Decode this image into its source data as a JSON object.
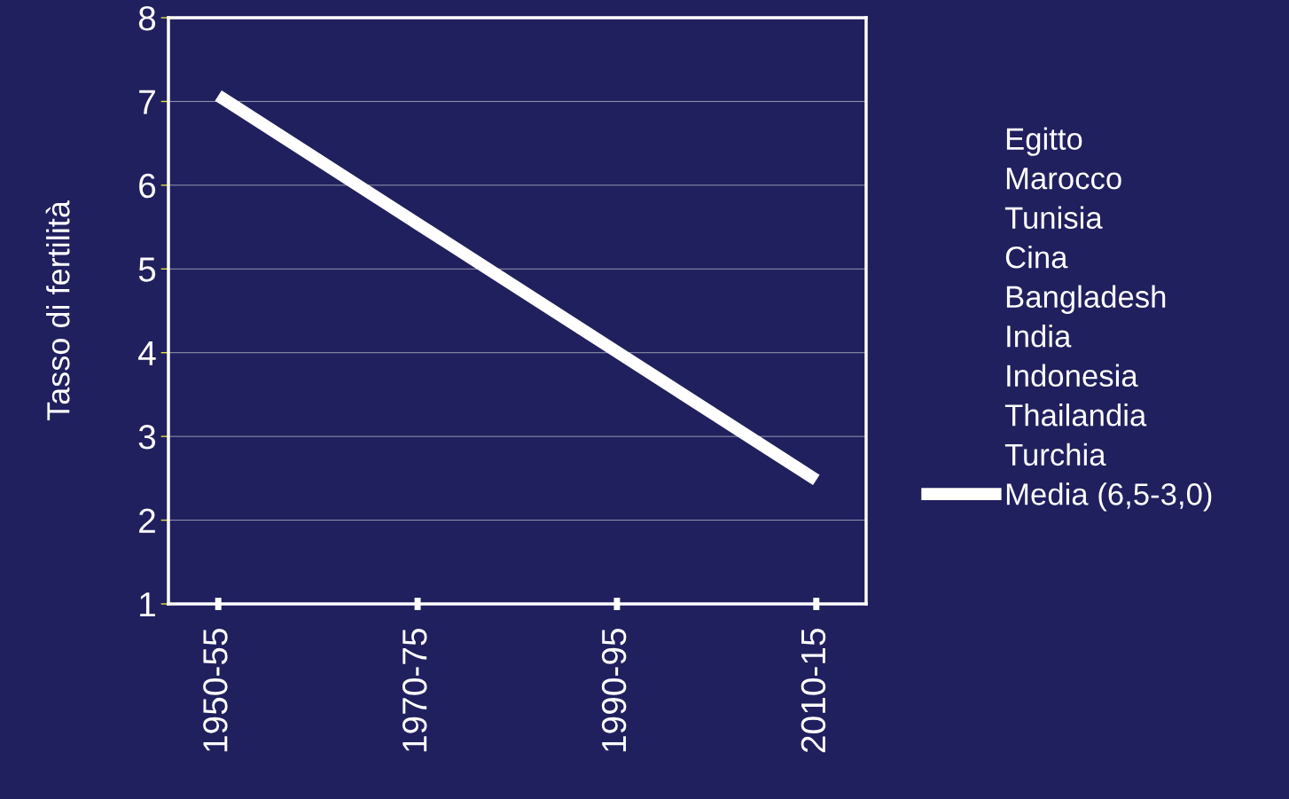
{
  "chart_data": {
    "type": "line",
    "ylabel": "Tasso di fertilità",
    "categories": [
      "1950-55",
      "1970-75",
      "1990-95",
      "2010-15"
    ],
    "series": [
      {
        "name": "Egitto",
        "values": [
          null,
          null,
          null,
          null
        ]
      },
      {
        "name": "Marocco",
        "values": [
          null,
          null,
          null,
          null
        ]
      },
      {
        "name": "Tunisia",
        "values": [
          null,
          null,
          null,
          null
        ]
      },
      {
        "name": "Cina",
        "values": [
          null,
          null,
          null,
          null
        ]
      },
      {
        "name": "Bangladesh",
        "values": [
          null,
          null,
          null,
          null
        ]
      },
      {
        "name": "India",
        "values": [
          null,
          null,
          null,
          null
        ]
      },
      {
        "name": "Indonesia",
        "values": [
          null,
          null,
          null,
          null
        ]
      },
      {
        "name": "Thailandia",
        "values": [
          null,
          null,
          null,
          null
        ]
      },
      {
        "name": "Turchia",
        "values": [
          null,
          null,
          null,
          null
        ]
      },
      {
        "name": "Media (6,5-3,0)",
        "color": "#ffffff",
        "values": [
          7.07,
          5.54,
          4.01,
          2.48
        ]
      }
    ],
    "ylim": [
      1,
      8
    ],
    "yticks": [
      1,
      2,
      3,
      4,
      5,
      6,
      7,
      8
    ],
    "grid": "y",
    "legend": "right",
    "marker": "none",
    "line_style": "solid"
  }
}
